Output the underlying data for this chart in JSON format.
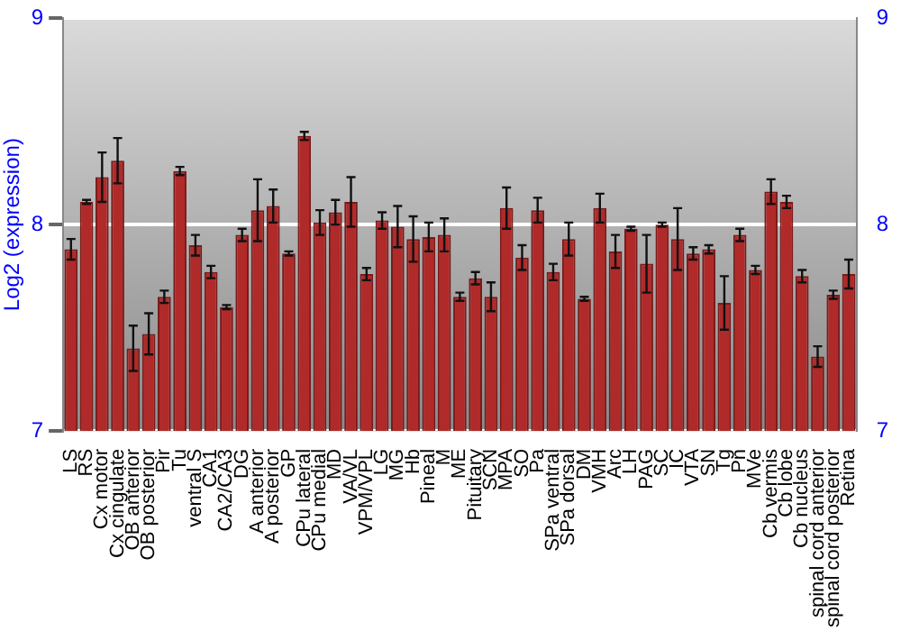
{
  "chart_data": {
    "type": "bar",
    "ylabel": "Log2 (expression)",
    "categories": [
      "LS",
      "RS",
      "Cx motor",
      "Cx cingulate",
      "OB anterior",
      "OB posterior",
      "Pir",
      "Tu",
      "ventral S",
      "CA1",
      "CA2/CA3",
      "DG",
      "A anterior",
      "A posterior",
      "GP",
      "CPu lateral",
      "CPu medial",
      "MD",
      "VA/VL",
      "VPM/VPL",
      "LG",
      "MG",
      "Hb",
      "Pineal",
      "M",
      "ME",
      "Pituitary",
      "SCN",
      "MPA",
      "SO",
      "Pa",
      "SPa ventral",
      "SPa dorsal",
      "DM",
      "VMH",
      "Arc",
      "LH",
      "PAG",
      "SC",
      "IC",
      "VTA",
      "SN",
      "Tg",
      "Pn",
      "MVe",
      "Cb vermis",
      "Cb lobe",
      "Cb nucleus",
      "spinal cord anterior",
      "spinal cord posterior",
      "Retina"
    ],
    "values": [
      7.88,
      8.11,
      8.23,
      8.31,
      7.4,
      7.47,
      7.65,
      8.26,
      7.9,
      7.77,
      7.6,
      7.95,
      8.07,
      8.09,
      7.86,
      8.43,
      8.01,
      8.06,
      8.11,
      7.76,
      8.02,
      7.99,
      7.93,
      7.94,
      7.95,
      7.65,
      7.74,
      7.65,
      8.08,
      7.84,
      8.07,
      7.77,
      7.93,
      7.64,
      8.08,
      7.87,
      7.98,
      7.81,
      8.0,
      7.93,
      7.86,
      7.88,
      7.62,
      7.95,
      7.78,
      8.16,
      8.11,
      7.75,
      7.36,
      7.66,
      7.76
    ],
    "errors": [
      0.05,
      0.01,
      0.12,
      0.11,
      0.11,
      0.1,
      0.03,
      0.02,
      0.05,
      0.03,
      0.01,
      0.03,
      0.15,
      0.08,
      0.01,
      0.02,
      0.06,
      0.06,
      0.12,
      0.03,
      0.04,
      0.1,
      0.11,
      0.07,
      0.08,
      0.02,
      0.03,
      0.07,
      0.1,
      0.06,
      0.06,
      0.04,
      0.08,
      0.01,
      0.07,
      0.08,
      0.01,
      0.14,
      0.01,
      0.15,
      0.03,
      0.02,
      0.13,
      0.03,
      0.02,
      0.06,
      0.03,
      0.03,
      0.05,
      0.02,
      0.07
    ],
    "color": "#b02a2a",
    "ylim": [
      7,
      9
    ],
    "yticks": [
      7,
      8,
      9
    ],
    "y2lim": [
      7,
      9
    ],
    "y2ticks": [
      7,
      8,
      9
    ],
    "grid": "y",
    "legend": false
  }
}
